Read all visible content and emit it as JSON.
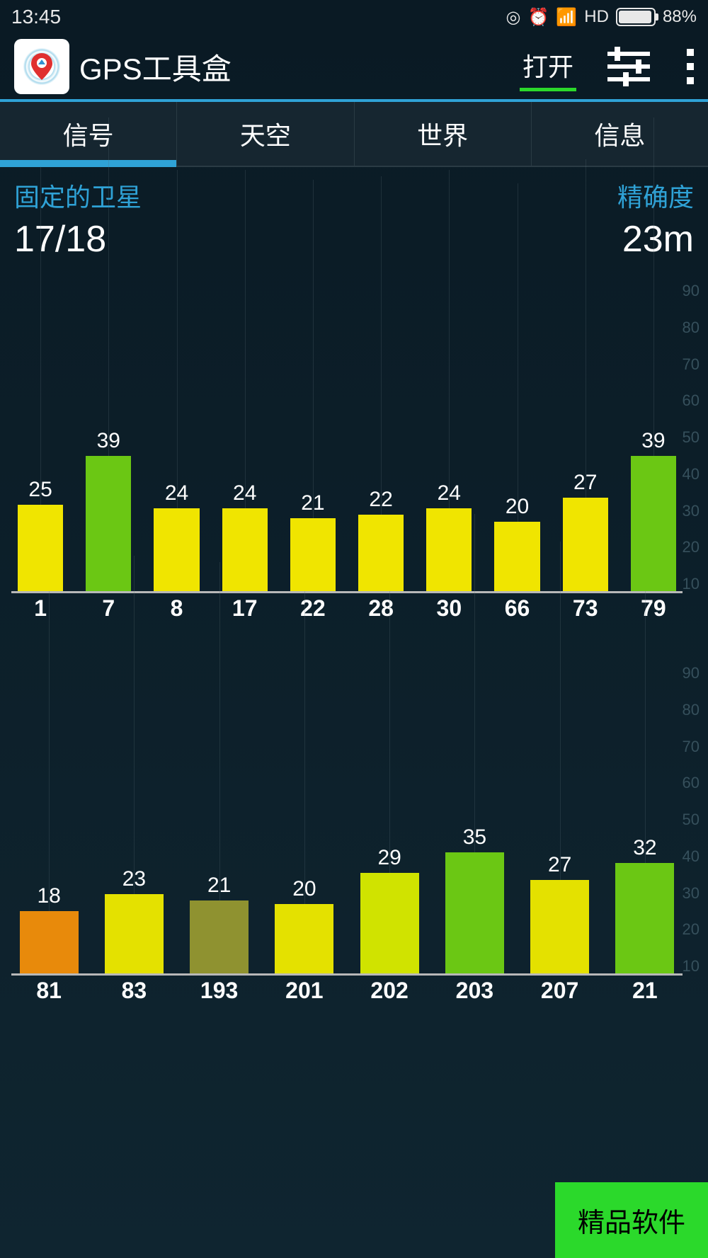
{
  "status_bar": {
    "time": "13:45",
    "hd_label": "HD",
    "battery_pct": "88%"
  },
  "header": {
    "title": "GPS工具盒",
    "action_label": "打开"
  },
  "tabs": [
    {
      "label": "信号",
      "active": true
    },
    {
      "label": "天空",
      "active": false
    },
    {
      "label": "世界",
      "active": false
    },
    {
      "label": "信息",
      "active": false
    }
  ],
  "info": {
    "fixed_label": "固定的卫星",
    "fixed_value": "17/18",
    "accuracy_label": "精确度",
    "accuracy_value": "23m"
  },
  "chart_top": {
    "type": "bar",
    "y_max": 90,
    "y_ticks": [
      "90",
      "80",
      "70",
      "60",
      "50",
      "40",
      "30",
      "20",
      "10"
    ],
    "bars": [
      {
        "id": "1",
        "value": 25,
        "color": "#f0e500"
      },
      {
        "id": "7",
        "value": 39,
        "color": "#6bc714"
      },
      {
        "id": "8",
        "value": 24,
        "color": "#f0e500"
      },
      {
        "id": "17",
        "value": 24,
        "color": "#f0e500"
      },
      {
        "id": "22",
        "value": 21,
        "color": "#f0e500"
      },
      {
        "id": "28",
        "value": 22,
        "color": "#f0e500"
      },
      {
        "id": "30",
        "value": 24,
        "color": "#f0e500"
      },
      {
        "id": "66",
        "value": 20,
        "color": "#f0e500"
      },
      {
        "id": "73",
        "value": 27,
        "color": "#f0e500"
      },
      {
        "id": "79",
        "value": 39,
        "color": "#6bc714"
      }
    ]
  },
  "chart_bottom": {
    "type": "bar",
    "y_max": 90,
    "y_ticks": [
      "90",
      "80",
      "70",
      "60",
      "50",
      "40",
      "30",
      "20",
      "10"
    ],
    "bars": [
      {
        "id": "81",
        "value": 18,
        "color": "#e88a0b"
      },
      {
        "id": "83",
        "value": 23,
        "color": "#e4e100"
      },
      {
        "id": "193",
        "value": 21,
        "color": "#8f9230"
      },
      {
        "id": "201",
        "value": 20,
        "color": "#e4e100"
      },
      {
        "id": "202",
        "value": 29,
        "color": "#d0e300"
      },
      {
        "id": "203",
        "value": 35,
        "color": "#6bc714"
      },
      {
        "id": "207",
        "value": 27,
        "color": "#e4e100"
      },
      {
        "id": "21",
        "value": 32,
        "color": "#6bc714"
      }
    ]
  },
  "badge": {
    "label": "精品软件",
    "bg": "#2bd92b"
  },
  "colors": {
    "accent_blue": "#2fa2d6",
    "green": "#2bd92b",
    "bg_top": "#0a1a24"
  }
}
